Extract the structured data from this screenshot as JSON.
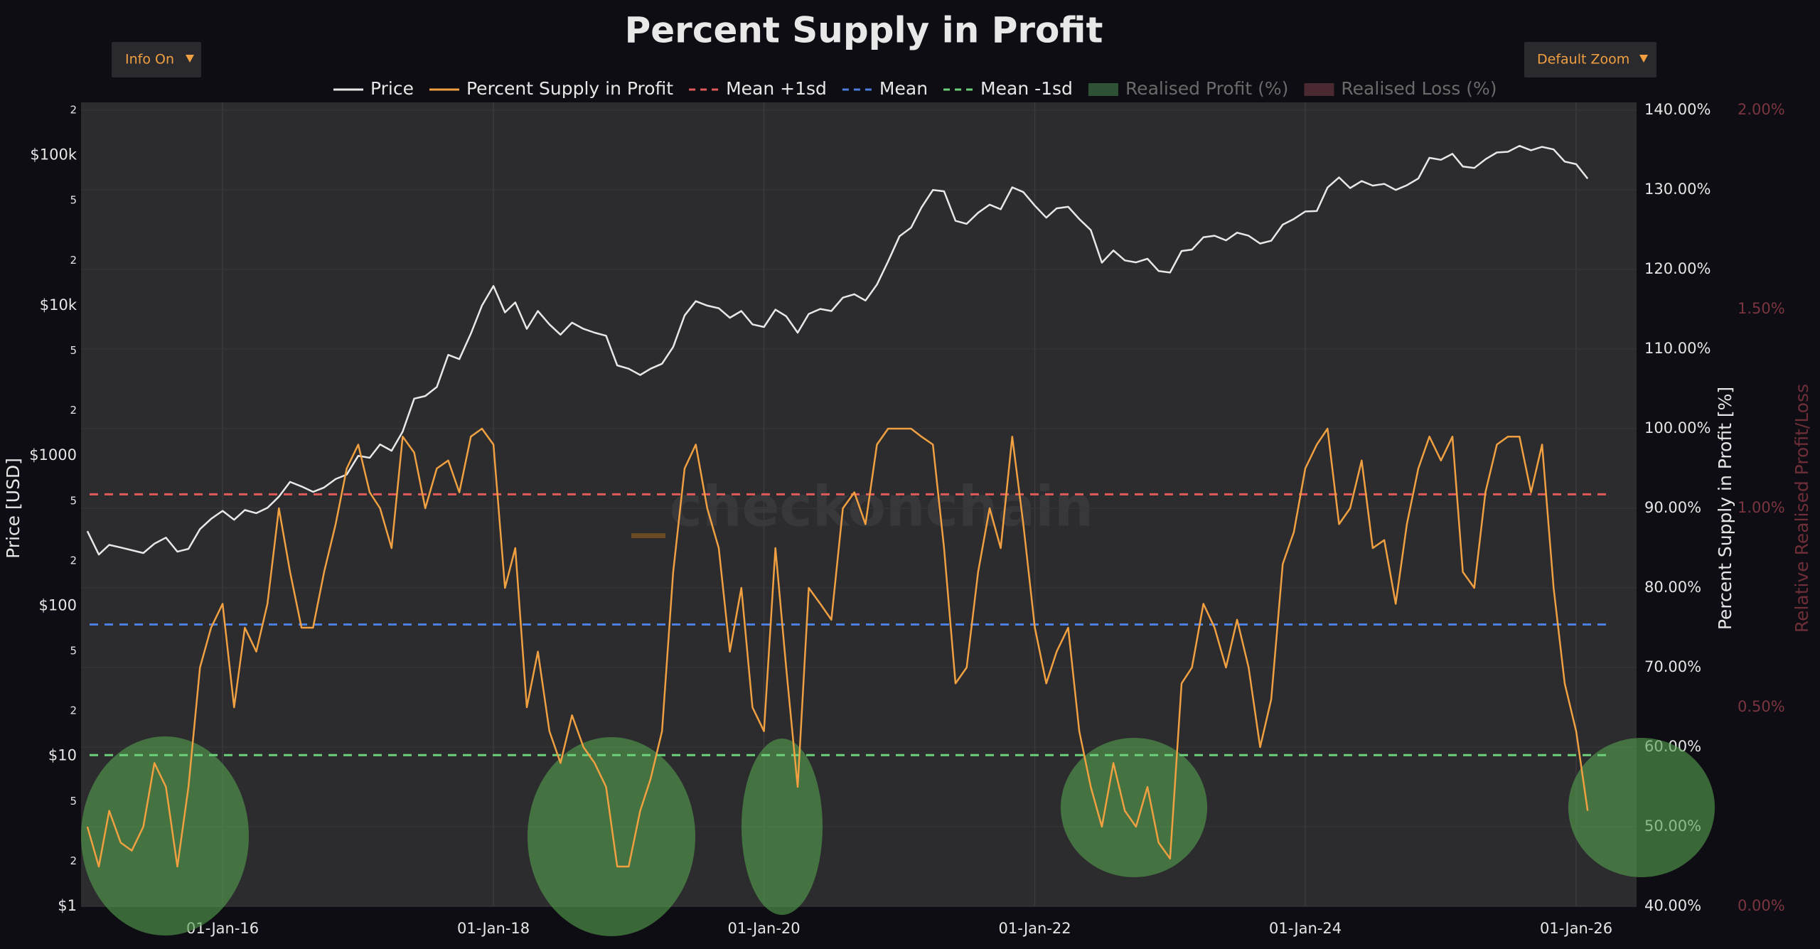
{
  "chart_data": {
    "type": "line",
    "title": "Percent Supply in Profit",
    "watermark": "checkonchain",
    "buttons": {
      "info": "Info On",
      "zoom": "Default Zoom"
    },
    "y_label": "Price [USD]",
    "y2_label": "Percent Supply in Profit [%]",
    "y3_label": "Relative Realised Profit/Loss",
    "log_y": true,
    "grid": true,
    "x": [
      "2015-01-01",
      "2015-02-01",
      "2015-03-01",
      "2015-04-01",
      "2015-05-01",
      "2015-06-01",
      "2015-07-01",
      "2015-08-01",
      "2015-09-01",
      "2015-10-01",
      "2015-11-01",
      "2015-12-01",
      "2016-01-01",
      "2016-02-01",
      "2016-03-01",
      "2016-04-01",
      "2016-05-01",
      "2016-06-01",
      "2016-07-01",
      "2016-08-01",
      "2016-09-01",
      "2016-10-01",
      "2016-11-01",
      "2016-12-01",
      "2017-01-01",
      "2017-02-01",
      "2017-03-01",
      "2017-04-01",
      "2017-05-01",
      "2017-06-01",
      "2017-07-01",
      "2017-08-01",
      "2017-09-01",
      "2017-10-01",
      "2017-11-01",
      "2017-12-01",
      "2018-01-01",
      "2018-02-01",
      "2018-03-01",
      "2018-04-01",
      "2018-05-01",
      "2018-06-01",
      "2018-07-01",
      "2018-08-01",
      "2018-09-01",
      "2018-10-01",
      "2018-11-01",
      "2018-12-01",
      "2019-01-01",
      "2019-02-01",
      "2019-03-01",
      "2019-04-01",
      "2019-05-01",
      "2019-06-01",
      "2019-07-01",
      "2019-08-01",
      "2019-09-01",
      "2019-10-01",
      "2019-11-01",
      "2019-12-01",
      "2020-01-01",
      "2020-02-01",
      "2020-03-01",
      "2020-04-01",
      "2020-05-01",
      "2020-06-01",
      "2020-07-01",
      "2020-08-01",
      "2020-09-01",
      "2020-10-01",
      "2020-11-01",
      "2020-12-01",
      "2021-01-01",
      "2021-02-01",
      "2021-03-01",
      "2021-04-01",
      "2021-05-01",
      "2021-06-01",
      "2021-07-01",
      "2021-08-01",
      "2021-09-01",
      "2021-10-01",
      "2021-11-01",
      "2021-12-01",
      "2022-01-01",
      "2022-02-01",
      "2022-03-01",
      "2022-04-01",
      "2022-05-01",
      "2022-06-01",
      "2022-07-01",
      "2022-08-01",
      "2022-09-01",
      "2022-10-01",
      "2022-11-01",
      "2022-12-01",
      "2023-01-01",
      "2023-02-01",
      "2023-03-01",
      "2023-04-01",
      "2023-05-01",
      "2023-06-01",
      "2023-07-01",
      "2023-08-01",
      "2023-09-01",
      "2023-10-01",
      "2023-11-01",
      "2023-12-01",
      "2024-01-01",
      "2024-02-01",
      "2024-03-01",
      "2024-04-01",
      "2024-05-01",
      "2024-06-01",
      "2024-07-01",
      "2024-08-01",
      "2024-09-01",
      "2024-10-01",
      "2024-11-01",
      "2024-12-01",
      "2025-01-01",
      "2025-02-01",
      "2025-03-01",
      "2025-04-01",
      "2025-05-01",
      "2025-06-01",
      "2025-07-01",
      "2025-08-01",
      "2025-09-01",
      "2025-10-01",
      "2025-11-01",
      "2025-12-01",
      "2026-01-01",
      "2026-02-01"
    ],
    "series": [
      {
        "name": "Price",
        "color": "#e8e8e8",
        "axis": "y",
        "values": [
          315,
          220,
          255,
          245,
          235,
          225,
          260,
          285,
          230,
          240,
          325,
          380,
          430,
          375,
          435,
          415,
          450,
          535,
          670,
          625,
          575,
          615,
          700,
          750,
          1000,
          970,
          1190,
          1080,
          1450,
          2400,
          2500,
          2870,
          4700,
          4400,
          6500,
          10000,
          13500,
          9000,
          10500,
          7000,
          9200,
          7500,
          6400,
          7700,
          7000,
          6600,
          6300,
          4000,
          3800,
          3450,
          3800,
          4100,
          5300,
          8600,
          10700,
          10000,
          9600,
          8300,
          9200,
          7500,
          7200,
          9400,
          8500,
          6600,
          8800,
          9500,
          9200,
          11300,
          11900,
          10800,
          13800,
          19700,
          29000,
          33000,
          45000,
          58800,
          57700,
          36700,
          35000,
          41500,
          47000,
          43800,
          61300,
          57000,
          46300,
          38500,
          44400,
          45500,
          37700,
          31800,
          19300,
          23300,
          20000,
          19400,
          20500,
          17000,
          16600,
          23100,
          23600,
          28500,
          29200,
          27200,
          30600,
          29200,
          25900,
          27000,
          34600,
          37700,
          42300,
          42600,
          61100,
          71300,
          60600,
          67500,
          62900,
          64600,
          58900,
          63300,
          70200,
          96400,
          93500,
          102400,
          84400,
          82500,
          94200,
          104600,
          105700,
          115700,
          108200,
          114000,
          109600,
          91000,
          87500,
          70000
        ]
      },
      {
        "name": "Percent Supply in Profit",
        "color": "#f0a040",
        "axis": "y2",
        "values": [
          50,
          45,
          52,
          48,
          47,
          50,
          58,
          55,
          45,
          55,
          70,
          75,
          78,
          65,
          75,
          72,
          78,
          90,
          82,
          75,
          75,
          82,
          88,
          95,
          98,
          92,
          90,
          85,
          99,
          97,
          90,
          95,
          96,
          92,
          99,
          100,
          98,
          80,
          85,
          65,
          72,
          62,
          58,
          64,
          60,
          58,
          55,
          45,
          45,
          52,
          56,
          62,
          82,
          95,
          98,
          90,
          85,
          72,
          80,
          65,
          62,
          85,
          70,
          55,
          80,
          78,
          76,
          90,
          92,
          88,
          98,
          100,
          100,
          100,
          99,
          98,
          85,
          68,
          70,
          82,
          90,
          85,
          99,
          88,
          75,
          68,
          72,
          75,
          62,
          55,
          50,
          58,
          52,
          50,
          55,
          48,
          46,
          68,
          70,
          78,
          75,
          70,
          76,
          70,
          60,
          66,
          83,
          87,
          95,
          98,
          100,
          88,
          90,
          96,
          85,
          86,
          78,
          88,
          95,
          99,
          96,
          99,
          82,
          80,
          92,
          98,
          99,
          99,
          92,
          98,
          80,
          68,
          62,
          52
        ]
      },
      {
        "name": "Realised Profit (%)",
        "color": "#2f5236",
        "axis": "y3",
        "visible": false
      },
      {
        "name": "Realised Loss (%)",
        "color": "#4a2a30",
        "axis": "y3",
        "visible": false
      }
    ],
    "reference_lines": [
      {
        "name": "Mean +1sd",
        "color": "#e05a5a",
        "axis": "y2",
        "value": 91.75
      },
      {
        "name": "Mean",
        "color": "#4a7fe0",
        "axis": "y2",
        "value": 75.4
      },
      {
        "name": "Mean -1sd",
        "color": "#6ccf7a",
        "axis": "y2",
        "value": 59
      }
    ],
    "xlim": [
      "2014-12-15",
      "2026-06-13"
    ],
    "xticks": [
      {
        "value": "2016-01-01",
        "label": "01-Jan-16"
      },
      {
        "value": "2018-01-01",
        "label": "01-Jan-18"
      },
      {
        "value": "2020-01-01",
        "label": "01-Jan-20"
      },
      {
        "value": "2022-01-01",
        "label": "01-Jan-22"
      },
      {
        "value": "2024-01-01",
        "label": "01-Jan-24"
      },
      {
        "value": "2026-01-01",
        "label": "01-Jan-26"
      }
    ],
    "ylim": [
      1,
      200000
    ],
    "yticks": [
      {
        "value": 1,
        "label": "$1"
      },
      2,
      5,
      {
        "value": 10,
        "label": "$10"
      },
      {
        "value": 20,
        "label": "2"
      },
      {
        "value": 50,
        "label": "5"
      },
      {
        "value": 100,
        "label": "$100"
      },
      {
        "value": 200,
        "label": "2"
      },
      {
        "value": 500,
        "label": "5"
      },
      {
        "value": 1000,
        "label": "$1000"
      },
      {
        "value": 2000,
        "label": "2"
      },
      {
        "value": 5000,
        "label": "5"
      },
      {
        "value": 10000,
        "label": "$10k"
      },
      {
        "value": 20000,
        "label": "2"
      },
      {
        "value": 50000,
        "label": "5"
      },
      {
        "value": 100000,
        "label": "$100k"
      },
      {
        "value": 200000,
        "label": "2"
      }
    ],
    "y2lim": [
      40,
      140
    ],
    "y2ticks": [
      {
        "value": 40,
        "label": "40.00%"
      },
      {
        "value": 50,
        "label": "50.00%"
      },
      {
        "value": 60,
        "label": "60.00%"
      },
      {
        "value": 70,
        "label": "70.00%"
      },
      {
        "value": 80,
        "label": "80.00%"
      },
      {
        "value": 90,
        "label": "90.00%"
      },
      {
        "value": 100,
        "label": "100.00%"
      },
      {
        "value": 110,
        "label": "110.00%"
      },
      {
        "value": 120,
        "label": "120.00%"
      },
      {
        "value": 130,
        "label": "130.00%"
      },
      {
        "value": 140,
        "label": "140.00%"
      }
    ],
    "y3lim": [
      0,
      2
    ],
    "y3ticks": [
      {
        "value": 0,
        "label": "0.00%"
      },
      {
        "value": 0.5,
        "label": "0.50%"
      },
      {
        "value": 1,
        "label": "1.00%"
      },
      {
        "value": 1.5,
        "label": "1.50%"
      },
      {
        "value": 2,
        "label": "2.00%"
      }
    ]
  }
}
